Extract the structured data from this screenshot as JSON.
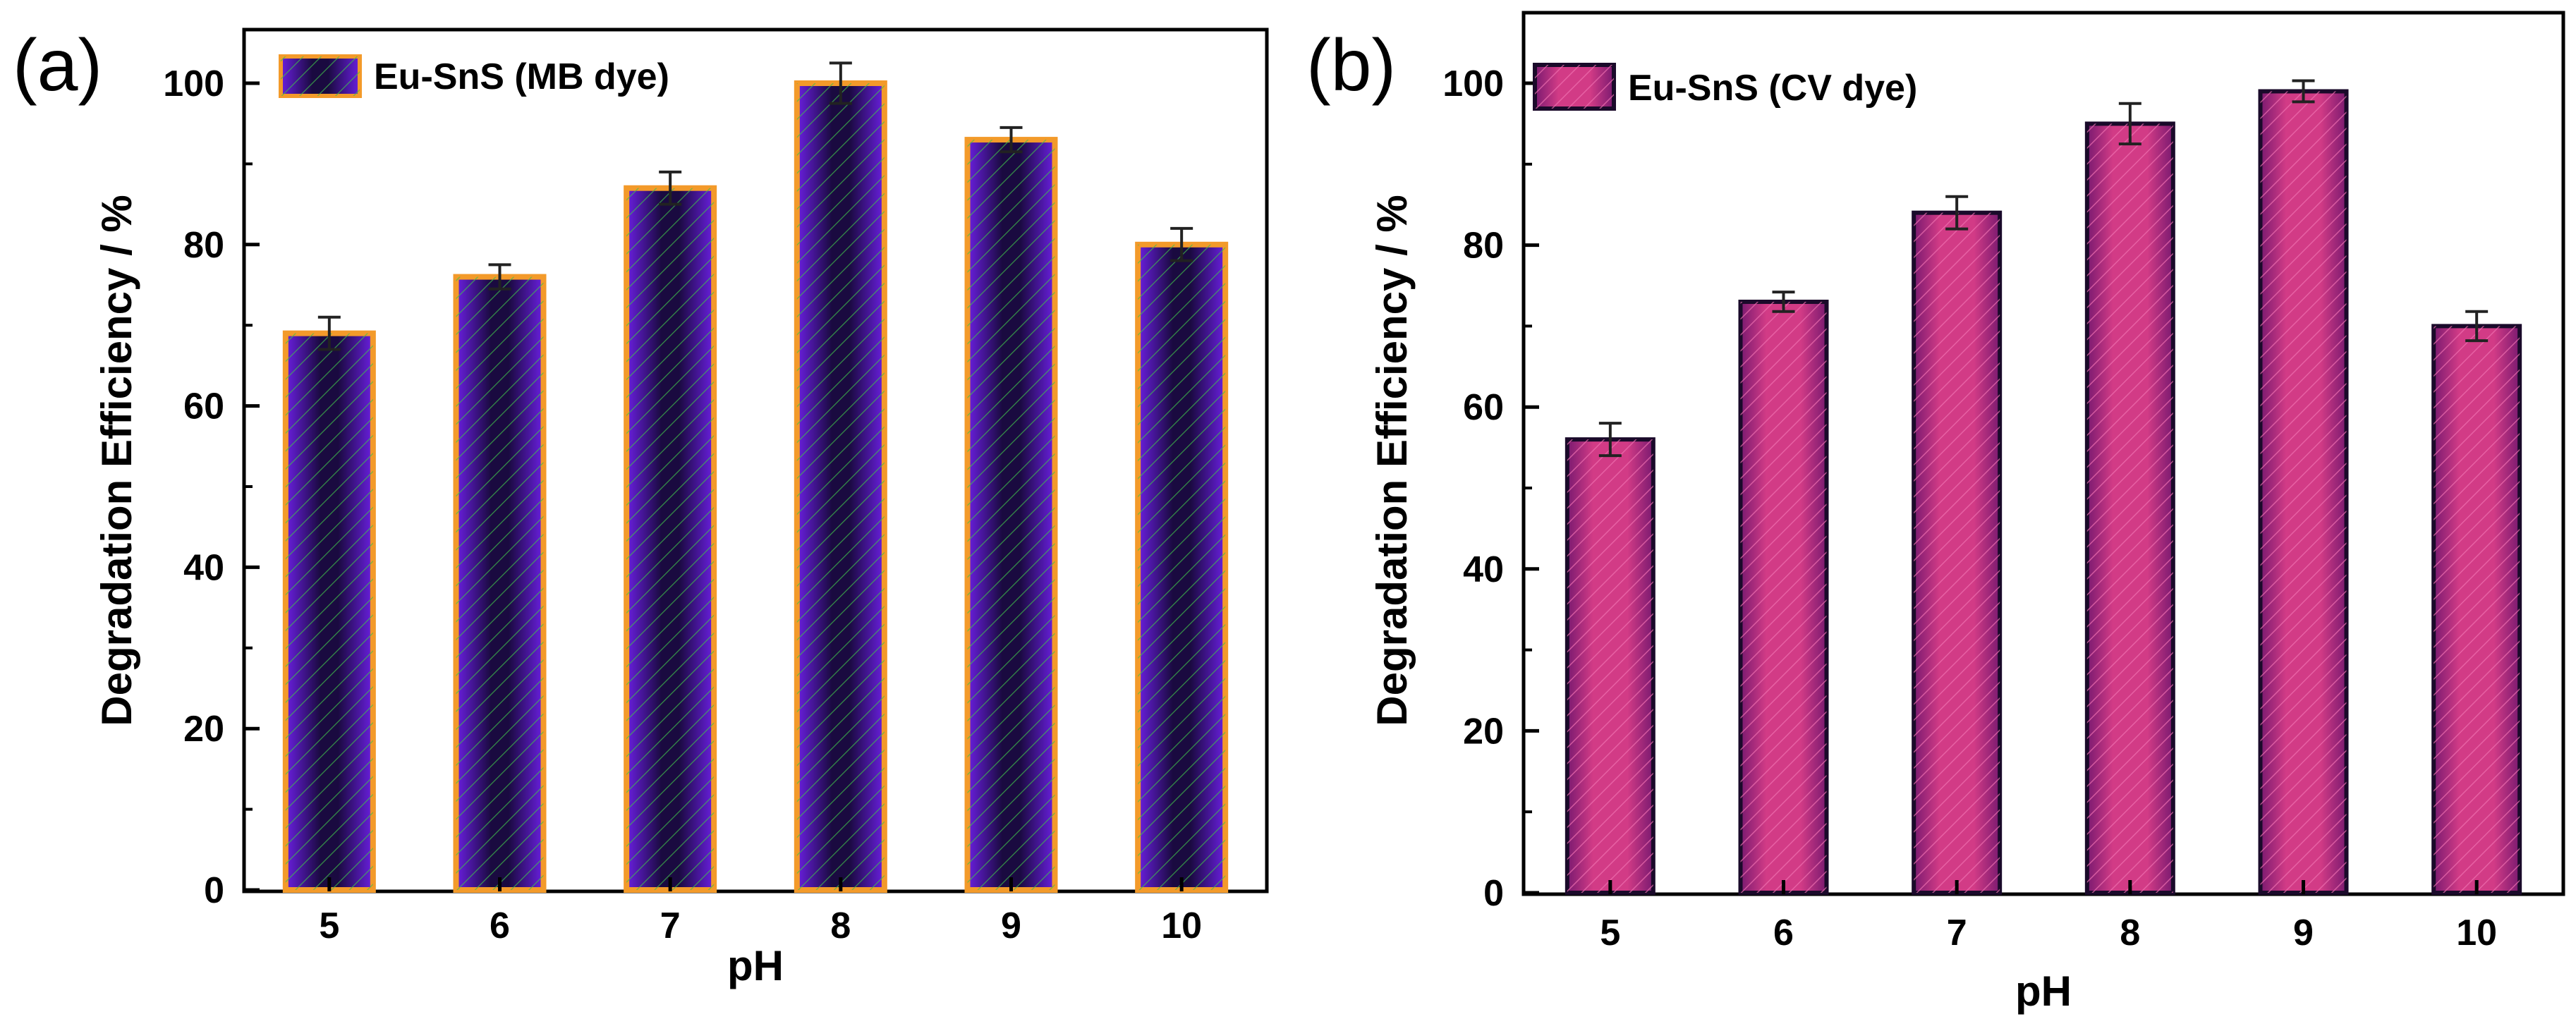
{
  "figure": {
    "panel_labels": [
      "(a)",
      "(b)"
    ]
  },
  "chart_data": [
    {
      "type": "bar",
      "panel": "(a)",
      "title": "",
      "xlabel": "pH",
      "ylabel": "Degradation Efficiency / %",
      "categories": [
        "5",
        "6",
        "7",
        "8",
        "9",
        "10"
      ],
      "series": [
        {
          "name": "Eu-SnS (MB dye)",
          "values": [
            69,
            76,
            87,
            100,
            93,
            80
          ],
          "errors": [
            2,
            1.5,
            2,
            2.5,
            1.5,
            2
          ],
          "fill": "#6A1FE0",
          "stripe_colors": [
            "#1a1a1a",
            "#2ecc40"
          ],
          "edge": "#F39A2A"
        }
      ],
      "ylim": [
        0,
        105
      ],
      "yticks": [
        0,
        20,
        40,
        60,
        80,
        100
      ],
      "grid": false,
      "legend": "top-left"
    },
    {
      "type": "bar",
      "panel": "(b)",
      "title": "",
      "xlabel": "pH",
      "ylabel": "Degradation Efficiency / %",
      "categories": [
        "5",
        "6",
        "7",
        "8",
        "9",
        "10"
      ],
      "series": [
        {
          "name": "Eu-SnS (CV dye)",
          "values": [
            56,
            73,
            84,
            95,
            99,
            70
          ],
          "errors": [
            2,
            1.2,
            2,
            2.5,
            1.3,
            1.8
          ],
          "fill": "#C02A7A",
          "stripe_colors": [
            "#5a1560",
            "#e04090"
          ],
          "edge": "#1a0a2a"
        }
      ],
      "ylim": [
        0,
        106
      ],
      "yticks": [
        0,
        20,
        40,
        60,
        80,
        100
      ],
      "grid": false,
      "legend": "top-left"
    }
  ]
}
